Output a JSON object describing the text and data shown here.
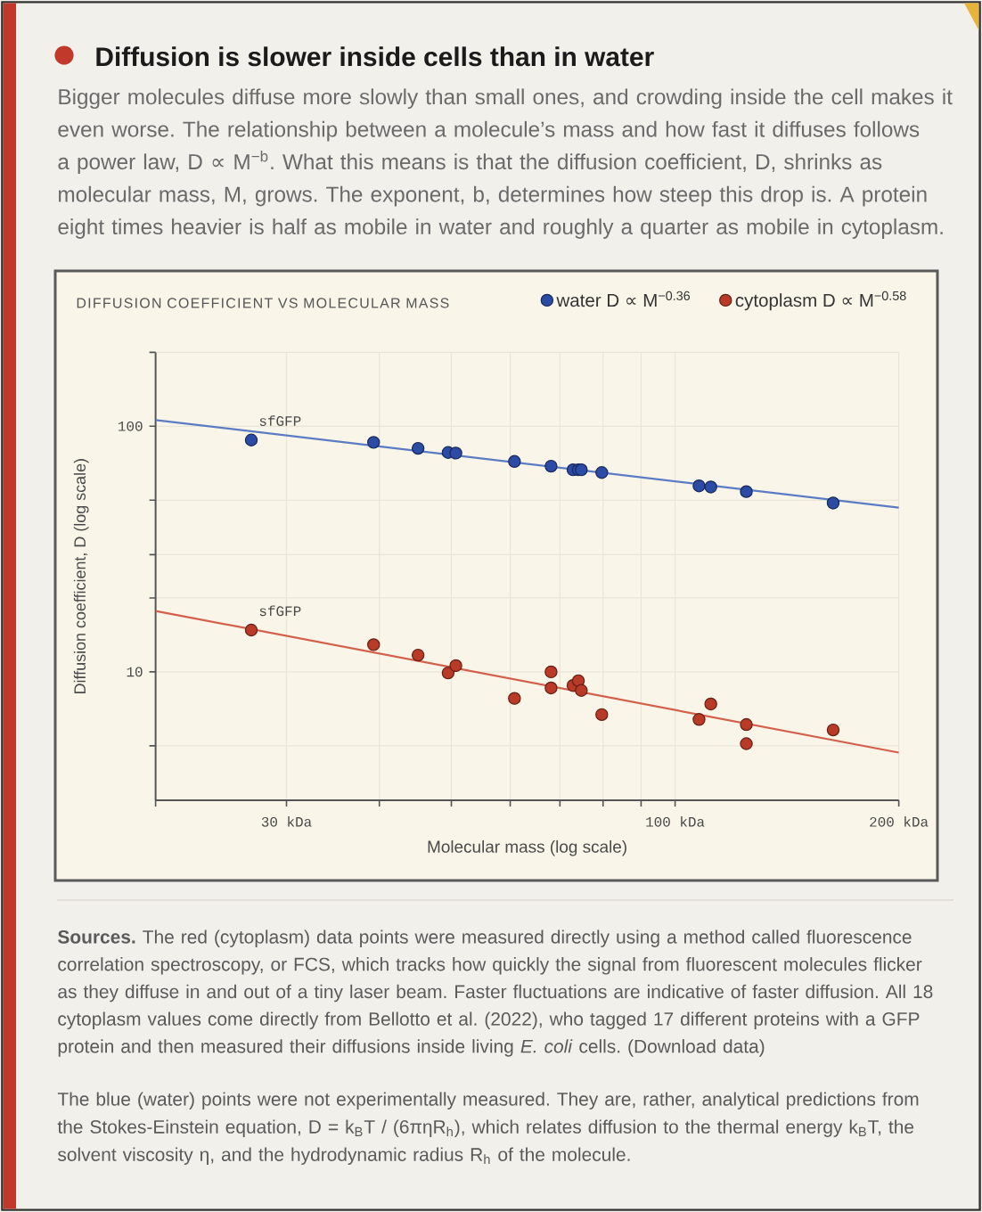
{
  "chart_data": {
    "type": "scatter",
    "title": "Diffusion is slower inside cells than in water",
    "subtitle": "Bigger molecules diffuse more slowly than small ones, and crowding inside the cell makes it even worse. The relationship between a molecule’s mass and how fast it diffuses follows a power law, D ∝ M$^{−b}$. What this means is that the diffusion coefficient, D, shrinks as molecular mass, M, grows. The exponent, b, determines how steep this drop is. A protein eight times heavier is half as mobile in water and roughly a quarter as mobile in cytoplasm.",
    "xlabel": "Molecular mass (log scale)",
    "ylabel": "Diffusion coefficient, D (log scale)",
    "log": "xy",
    "xlim": [
      20,
      200
    ],
    "ylim": [
      3,
      200
    ],
    "xticks": [
      {
        "value": 20,
        "label": null
      },
      {
        "value": 30,
        "label": "30 kDa"
      },
      {
        "value": 40,
        "label": null
      },
      {
        "value": 50,
        "label": null
      },
      {
        "value": 60,
        "label": null
      },
      {
        "value": 70,
        "label": null
      },
      {
        "value": 80,
        "label": null
      },
      {
        "value": 90,
        "label": null
      },
      {
        "value": 100,
        "label": "100 kDa"
      },
      {
        "value": 200,
        "label": "200 kDa"
      }
    ],
    "yticks": [
      {
        "value": 5,
        "label": null
      },
      10,
      {
        "value": 20,
        "label": null
      },
      {
        "value": 30,
        "label": null
      },
      {
        "value": 50,
        "label": null
      },
      100,
      {
        "value": 200,
        "label": null
      }
    ],
    "grid": true,
    "legend": "top right",
    "marker": "circle",
    "series": [
      {
        "name": "water D ∝ M$^{−0.36}$",
        "color": "#2b4ba5",
        "x": [
          26.9,
          39.3,
          45.1,
          49.5,
          50.7,
          60.8,
          68.1,
          72.9,
          74.1,
          74.8,
          79.7,
          107.7,
          111.7,
          124.7,
          163.2
        ],
        "values": [
          87.9,
          86.0,
          81.3,
          78.2,
          77.8,
          71.9,
          68.8,
          66.5,
          66.5,
          66.5,
          64.8,
          57.2,
          56.6,
          54.2,
          48.7
        ]
      },
      {
        "name": "cytoplasm D ∝ M$^{−0.58}$",
        "color": "#b93a26",
        "x": [
          26.9,
          39.3,
          45.1,
          49.5,
          50.7,
          60.8,
          68.1,
          68.1,
          72.9,
          74.1,
          74.8,
          79.7,
          107.7,
          111.7,
          124.7,
          124.7,
          163.2
        ],
        "values": [
          14.8,
          12.9,
          11.7,
          9.9,
          10.6,
          7.8,
          10.0,
          8.6,
          8.8,
          9.2,
          8.4,
          6.7,
          6.4,
          7.4,
          6.1,
          5.1,
          5.8
        ]
      },
      {
        "type": "line",
        "marker": "none",
        "color": "#5b7cc4",
        "x": [
          20,
          200
        ],
        "values": [
          106,
          46.6
        ]
      },
      {
        "type": "line",
        "marker": "none",
        "color": "#d4604c",
        "x": [
          20,
          200
        ],
        "values": [
          17.7,
          4.69
        ]
      }
    ],
    "annotations": [
      "DIFFUSION COEFFICIENT VS MOLECULAR MASS",
      "**Sources.** The red (cytoplasm) data points were measured directly using a method called fluorescence correlation spectroscopy, or FCS, which tracks how quickly the signal from fluorescent molecules flicker as they diffuse in and out of a tiny laser beam. Faster fluctuations are indicative of faster diffusion. All 18 cytoplasm values come directly from Bellotto et al. (2022), who tagged 17 different proteins with a GFP protein and then measured their diffusions inside living *E. coli* cells. (Download data)",
      "The blue (water) points were not experimentally measured. They are, rather, analytical predictions from the Stokes-Einstein equation, D = k$_{B}$T / (6πηR$_{h}$), which relates diffusion to the thermal energy k$_{B}$T, the solvent viscosity η, and the hydrodynamic radius R$_{h}$ of the molecule.",
      {
        "text": "sfGFP",
        "x": 26.9,
        "y": 87.9
      },
      {
        "text": "sfGFP",
        "x": 26.9,
        "y": 14.8
      }
    ]
  }
}
